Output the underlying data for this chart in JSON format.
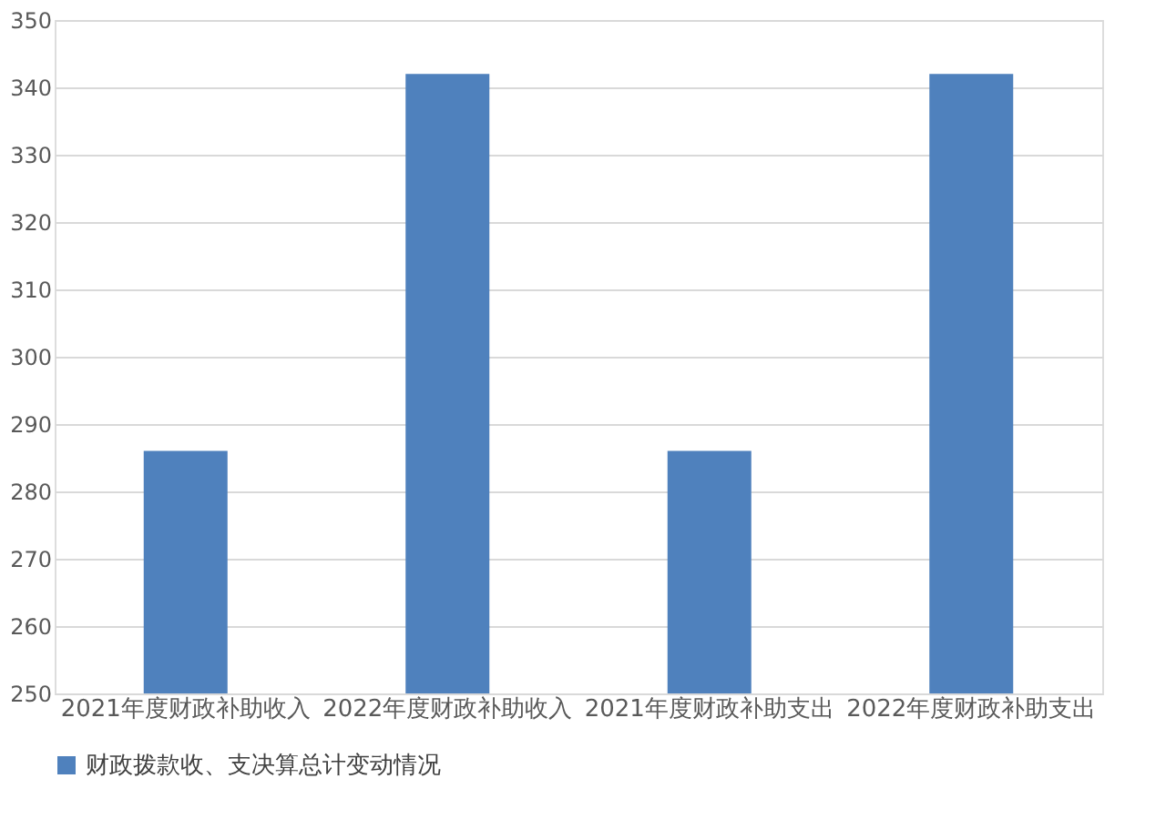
{
  "chart_data": {
    "type": "bar",
    "categories": [
      "2021年度财政补助收入",
      "2022年度财政补助收入",
      "2021年度财政补助支出",
      "2022年度财政补助支出"
    ],
    "series": [
      {
        "name": "财政拨款收、支决算总计变动情况",
        "color": "#4f81bd",
        "values": [
          286,
          342,
          286,
          342
        ]
      }
    ],
    "ylim": [
      250,
      350
    ],
    "yticks": [
      250,
      260,
      270,
      280,
      290,
      300,
      310,
      320,
      330,
      340,
      350
    ],
    "grid": "y",
    "legend": "bottom"
  }
}
